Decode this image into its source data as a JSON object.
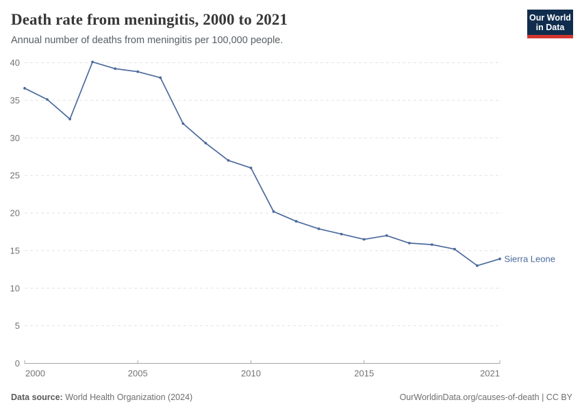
{
  "header": {
    "title": "Death rate from meningitis, 2000 to 2021",
    "subtitle": "Annual number of deaths from meningitis per 100,000 people.",
    "logo": {
      "line1": "Our World",
      "line2": "in Data",
      "bg_color": "#102d4e",
      "accent_color": "#d1362f"
    }
  },
  "chart_data": {
    "type": "line",
    "title": "Death rate from meningitis, 2000 to 2021",
    "subtitle": "Annual number of deaths from meningitis per 100,000 people.",
    "x": [
      2000,
      2001,
      2002,
      2003,
      2004,
      2005,
      2006,
      2007,
      2008,
      2009,
      2010,
      2011,
      2012,
      2013,
      2014,
      2015,
      2016,
      2017,
      2018,
      2019,
      2020,
      2021
    ],
    "series": [
      {
        "name": "Sierra Leone",
        "color": "#4c6a9c",
        "values": [
          36.6,
          35.1,
          32.5,
          40.1,
          39.2,
          38.8,
          38.0,
          31.9,
          29.3,
          27.0,
          26.0,
          20.2,
          18.9,
          17.9,
          17.2,
          16.5,
          17.0,
          16.0,
          15.8,
          15.2,
          13.0,
          13.9
        ]
      }
    ],
    "xlim": [
      2000,
      2021
    ],
    "ylim": [
      0,
      40
    ],
    "xticks": [
      2000,
      2005,
      2010,
      2015,
      2021
    ],
    "yticks": [
      0,
      5,
      10,
      15,
      20,
      25,
      30,
      35,
      40
    ],
    "xlabel": "",
    "ylabel": "",
    "grid": "horizontal-dashed",
    "legend_position": "end-of-line-label",
    "grid_color": "#e2e2e2",
    "axis_color": "#a5a5a5",
    "tick_color": "#737373"
  },
  "footer": {
    "source_label": "Data source:",
    "source_value": " World Health Organization (2024)",
    "credit": "OurWorldinData.org/causes-of-death | CC BY"
  }
}
